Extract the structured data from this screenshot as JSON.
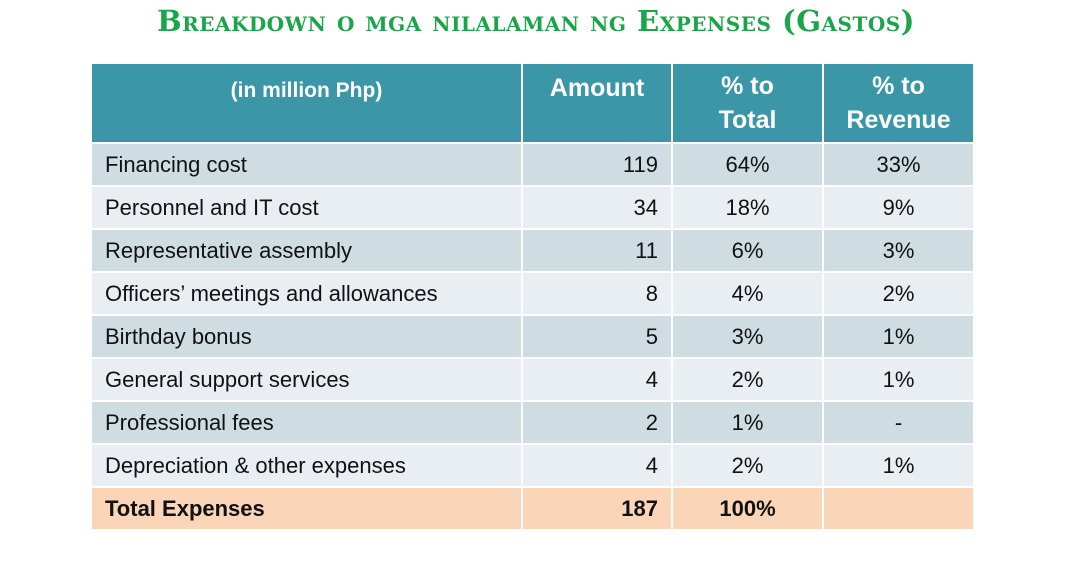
{
  "title": "Breakdown o mga nilalaman ng Expenses (Gastos)",
  "table": {
    "headers": {
      "label": "(in million Php)",
      "amount": "Amount",
      "pct_total_line1": "% to",
      "pct_total_line2": "Total",
      "pct_revenue_line1": "% to",
      "pct_revenue_line2": "Revenue"
    },
    "rows": [
      {
        "label": "Financing cost",
        "amount": "119",
        "pct_total": "64%",
        "pct_revenue": "33%"
      },
      {
        "label": "Personnel and IT cost",
        "amount": "34",
        "pct_total": "18%",
        "pct_revenue": "9%"
      },
      {
        "label": "Representative assembly",
        "amount": "11",
        "pct_total": "6%",
        "pct_revenue": "3%"
      },
      {
        "label": "Officers’ meetings and allowances",
        "amount": "8",
        "pct_total": "4%",
        "pct_revenue": "2%"
      },
      {
        "label": "Birthday bonus",
        "amount": "5",
        "pct_total": "3%",
        "pct_revenue": "1%"
      },
      {
        "label": "General support services",
        "amount": "4",
        "pct_total": "2%",
        "pct_revenue": "1%"
      },
      {
        "label": "Professional fees",
        "amount": "2",
        "pct_total": "1%",
        "pct_revenue": "-"
      },
      {
        "label": "Depreciation & other expenses",
        "amount": "4",
        "pct_total": "2%",
        "pct_revenue": "1%"
      }
    ],
    "total": {
      "label": "Total Expenses",
      "amount": "187",
      "pct_total": "100%",
      "pct_revenue": ""
    }
  },
  "colors": {
    "title": "#1aa54a",
    "header_bg": "#3b96a8",
    "row_dark": "#cfdde3",
    "row_light": "#e8eef1",
    "total_bg": "#fbd5b8"
  }
}
